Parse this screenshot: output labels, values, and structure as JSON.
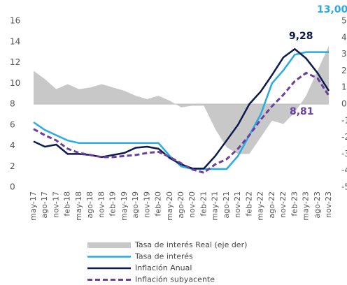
{
  "chart_data": {
    "type": "line",
    "categories": [
      "may-17",
      "ago-17",
      "nov-17",
      "feb-18",
      "may-18",
      "ago-18",
      "nov-18",
      "feb-19",
      "may-19",
      "ago-19",
      "nov-19",
      "feb-20",
      "may-20",
      "ago-20",
      "nov-20",
      "feb-21",
      "may-21",
      "ago-21",
      "nov-21",
      "feb-22",
      "may-22",
      "ago-22",
      "nov-22",
      "feb-23",
      "may-23",
      "ago-23",
      "nov-23"
    ],
    "series": [
      {
        "name": "Tasa de interés Real (eje der)",
        "color": "#c8c8c8",
        "type": "area",
        "axis": "y2",
        "values": [
          2.0,
          1.5,
          0.9,
          1.2,
          0.9,
          1.0,
          1.2,
          1.0,
          0.8,
          0.5,
          0.3,
          0.5,
          0.2,
          -0.2,
          -0.1,
          -0.1,
          -1.5,
          -2.6,
          -3.0,
          -3.0,
          -2.0,
          -1.0,
          -1.2,
          -0.5,
          0.5,
          2.0,
          3.5
        ]
      },
      {
        "name": "Tasa de interés",
        "color": "#29abe2",
        "values": [
          6.25,
          5.5,
          5.0,
          4.5,
          4.25,
          4.25,
          4.25,
          4.25,
          4.25,
          4.25,
          4.25,
          4.25,
          3.0,
          2.0,
          1.75,
          1.75,
          1.75,
          1.75,
          3.0,
          5.0,
          7.0,
          10.0,
          11.25,
          12.75,
          13.0,
          13.0,
          13.0
        ],
        "value_labels": [
          null,
          null,
          null,
          null,
          null,
          null,
          null,
          null,
          null,
          null,
          null,
          null,
          null,
          null,
          null,
          null,
          null,
          null,
          null,
          null,
          null,
          null,
          null,
          null,
          null,
          null,
          "13,00"
        ]
      },
      {
        "name": "Inflación Anual",
        "color": "#0d1a4a",
        "values": [
          4.4,
          3.9,
          4.1,
          3.2,
          3.2,
          3.1,
          2.9,
          3.1,
          3.3,
          3.8,
          3.9,
          3.7,
          2.8,
          2.2,
          1.8,
          1.8,
          3.0,
          4.5,
          6.0,
          8.0,
          9.2,
          10.8,
          12.5,
          13.3,
          12.4,
          11.0,
          9.28
        ],
        "value_labels": [
          null,
          null,
          null,
          null,
          null,
          null,
          null,
          null,
          null,
          null,
          null,
          null,
          null,
          null,
          null,
          null,
          null,
          null,
          null,
          null,
          null,
          null,
          null,
          null,
          null,
          null,
          "9,28"
        ]
      },
      {
        "name": "Inflación subyacente",
        "color": "#6b3fa0",
        "dashed": true,
        "values": [
          5.6,
          5.0,
          4.5,
          3.7,
          3.3,
          3.1,
          2.9,
          2.9,
          3.0,
          3.1,
          3.3,
          3.4,
          2.9,
          2.3,
          1.7,
          1.4,
          2.2,
          2.7,
          3.7,
          5.0,
          6.5,
          7.8,
          8.9,
          10.2,
          11.0,
          10.5,
          8.81
        ],
        "value_labels": [
          null,
          null,
          null,
          null,
          null,
          null,
          null,
          null,
          null,
          null,
          null,
          null,
          null,
          null,
          null,
          null,
          null,
          null,
          null,
          null,
          null,
          null,
          null,
          null,
          null,
          null,
          "8,81"
        ]
      }
    ],
    "ylim": [
      0,
      16
    ],
    "yticks": [
      0,
      2,
      4,
      6,
      8,
      10,
      12,
      14,
      16
    ],
    "y2lim": [
      -5,
      5
    ],
    "y2ticks": [
      -5,
      -4,
      -3,
      -2,
      -1,
      0,
      1,
      2,
      3,
      4,
      5
    ]
  }
}
